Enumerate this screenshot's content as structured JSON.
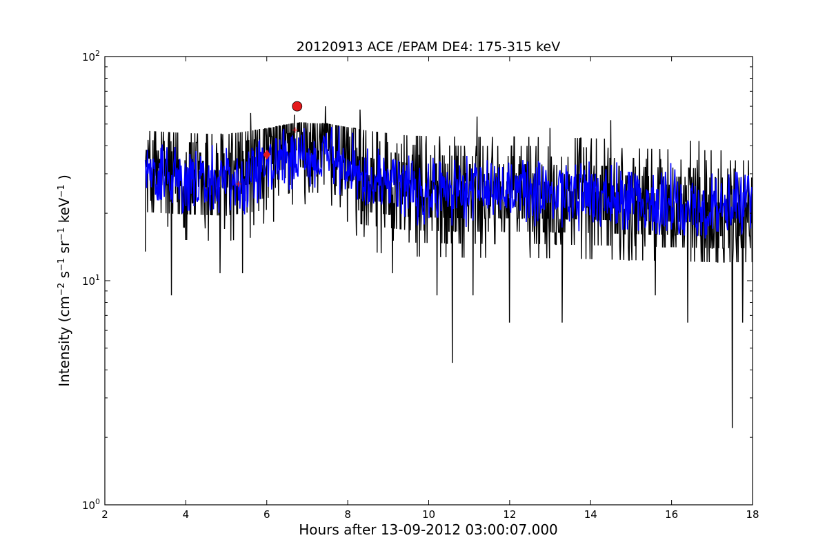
{
  "chart_data": {
    "type": "line",
    "title": "20120913 ACE /EPAM DE4: 175-315 keV",
    "xlabel": "Hours after 13-09-2012 03:00:07.000",
    "ylabel": {
      "text": "Intensity (cm",
      "parts": [
        {
          "t": "Intensity (cm",
          "sup": false
        },
        {
          "t": "−2",
          "sup": true
        },
        {
          "t": " s",
          "sup": false
        },
        {
          "t": "−1",
          "sup": true
        },
        {
          "t": " sr",
          "sup": false
        },
        {
          "t": "−1",
          "sup": true
        },
        {
          "t": " keV",
          "sup": false
        },
        {
          "t": "−1",
          "sup": true
        },
        {
          "t": " )",
          "sup": false
        }
      ]
    },
    "xlim": [
      2,
      18
    ],
    "ylim": [
      1,
      100
    ],
    "yscale": "log",
    "grid": false,
    "x_ticks": [
      {
        "value": 2,
        "label": "2"
      },
      {
        "value": 4,
        "label": "4"
      },
      {
        "value": 6,
        "label": "6"
      },
      {
        "value": 8,
        "label": "8"
      },
      {
        "value": 10,
        "label": "10"
      },
      {
        "value": 12,
        "label": "12"
      },
      {
        "value": 14,
        "label": "14"
      },
      {
        "value": 16,
        "label": "16"
      },
      {
        "value": 18,
        "label": "18"
      }
    ],
    "y_ticks": [
      {
        "value": 1,
        "base": "10",
        "exp": "0"
      },
      {
        "value": 10,
        "base": "10",
        "exp": "1"
      },
      {
        "value": 100,
        "base": "10",
        "exp": "2"
      }
    ],
    "series": [
      {
        "color": "#000000",
        "x_start": 3.0,
        "x_end": 18.0,
        "baseline": [
          [
            3.0,
            30
          ],
          [
            4.0,
            28
          ],
          [
            5.0,
            27
          ],
          [
            6.0,
            32
          ],
          [
            6.7,
            38
          ],
          [
            7.5,
            37
          ],
          [
            8.5,
            30
          ],
          [
            9.5,
            26
          ],
          [
            11.0,
            25
          ],
          [
            12.5,
            25
          ],
          [
            14.0,
            24
          ],
          [
            15.5,
            23
          ],
          [
            17.0,
            22
          ],
          [
            18.0,
            22
          ]
        ],
        "spikes": [
          [
            3.65,
            8.6
          ],
          [
            4.85,
            10.8
          ],
          [
            5.4,
            10.8
          ],
          [
            9.1,
            10.8
          ],
          [
            10.2,
            8.6
          ],
          [
            10.58,
            4.3
          ],
          [
            11.1,
            8.6
          ],
          [
            12.0,
            6.5
          ],
          [
            13.3,
            6.5
          ],
          [
            15.6,
            8.6
          ],
          [
            16.4,
            6.5
          ],
          [
            17.5,
            2.2
          ],
          [
            17.75,
            6.5
          ],
          [
            5.6,
            56
          ],
          [
            6.68,
            55
          ],
          [
            7.45,
            60
          ],
          [
            8.3,
            58
          ],
          [
            11.2,
            54
          ],
          [
            14.5,
            52
          ],
          [
            13.0,
            48
          ]
        ]
      },
      {
        "color": "#0000ff",
        "x_start": 3.0,
        "x_end": 18.0,
        "baseline": [
          [
            3.0,
            30
          ],
          [
            4.0,
            28
          ],
          [
            5.0,
            27
          ],
          [
            6.0,
            32
          ],
          [
            6.7,
            38
          ],
          [
            7.5,
            37
          ],
          [
            8.5,
            30
          ],
          [
            9.5,
            26
          ],
          [
            11.0,
            25
          ],
          [
            12.5,
            25
          ],
          [
            14.0,
            24
          ],
          [
            15.5,
            23
          ],
          [
            17.0,
            22
          ],
          [
            18.0,
            22
          ]
        ]
      }
    ],
    "markers": [
      {
        "shape": "circle",
        "x": 6.75,
        "y": 60,
        "color": "#e41a1c"
      },
      {
        "shape": "diamond",
        "x": 6.0,
        "y": 36.5,
        "color": "#e41a1c"
      },
      {
        "shape": "plus",
        "x": 6.7,
        "y": 47,
        "color": "#e41a1c"
      },
      {
        "shape": "plus",
        "x": 5.3,
        "y": 27,
        "color": "#e41a1c"
      }
    ]
  }
}
